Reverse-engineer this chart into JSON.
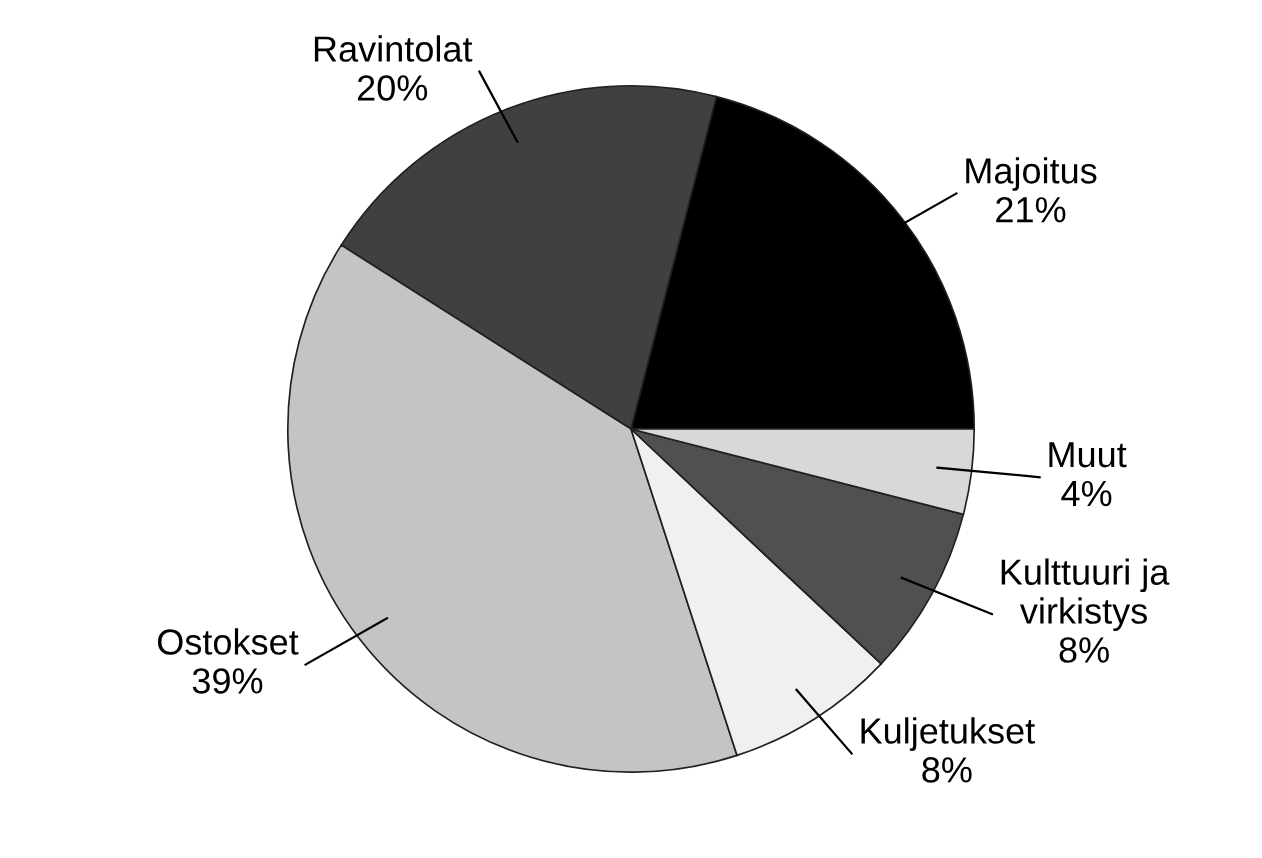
{
  "chart_data": {
    "type": "pie",
    "categories": [
      "Majoitus",
      "Ravintolat",
      "Ostokset",
      "Kuljetukset",
      "Kulttuuri ja\nvirkistys",
      "Muut"
    ],
    "values": [
      21,
      20,
      39,
      8,
      8,
      4
    ],
    "value_labels": [
      "21%",
      "20%",
      "39%",
      "8%",
      "8%",
      "4%"
    ],
    "colors": [
      "#000000",
      "#404040",
      "#c4c4c4",
      "#f0f0f0",
      "#505050",
      "#d8d8d8"
    ]
  }
}
